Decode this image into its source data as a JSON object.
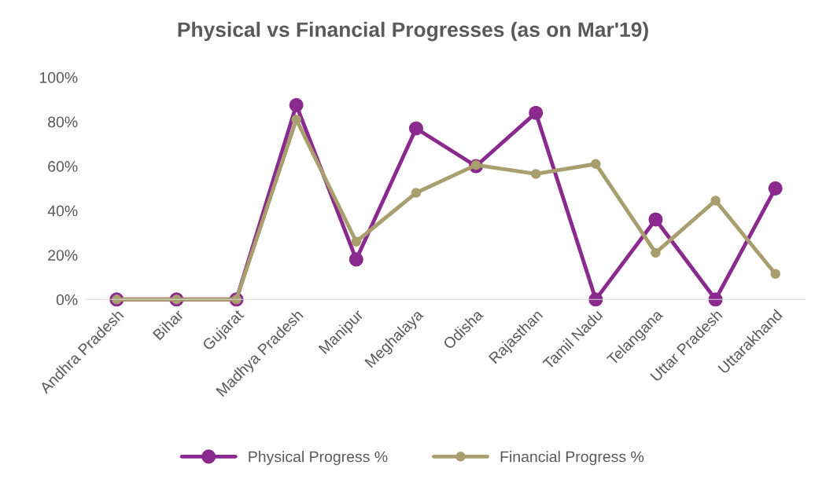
{
  "chart_data": {
    "type": "line",
    "title": "Physical vs Financial Progresses (as on Mar'19)",
    "categories": [
      "Andhra Pradesh",
      "Bihar",
      "Gujarat",
      "Madhya Pradesh",
      "Manipur",
      "Meghalaya",
      "Odisha",
      "Rajasthan",
      "Tamil Nadu",
      "Telangana",
      "Uttar Pradesh",
      "Uttarakhand"
    ],
    "series": [
      {
        "name": "Physical Progress %",
        "color": "#8b2a8e",
        "values": [
          0,
          0,
          0,
          87.5,
          18,
          77,
          60,
          84,
          0,
          36,
          0,
          50
        ]
      },
      {
        "name": "Financial Progress %",
        "color": "#a89e6e",
        "values": [
          0,
          0,
          0,
          81,
          26,
          48,
          60.5,
          56.5,
          61,
          21,
          44.5,
          11.5
        ]
      }
    ],
    "ylim": [
      0,
      100
    ],
    "yticks": [
      {
        "value": 0,
        "label": "0%"
      },
      {
        "value": 20,
        "label": "20%"
      },
      {
        "value": 40,
        "label": "40%"
      },
      {
        "value": 60,
        "label": "60%"
      },
      {
        "value": 80,
        "label": "80%"
      },
      {
        "value": 100,
        "label": "100%"
      }
    ],
    "grid": false,
    "legend": "bottom",
    "marker": "circle",
    "line_style": "solid"
  }
}
